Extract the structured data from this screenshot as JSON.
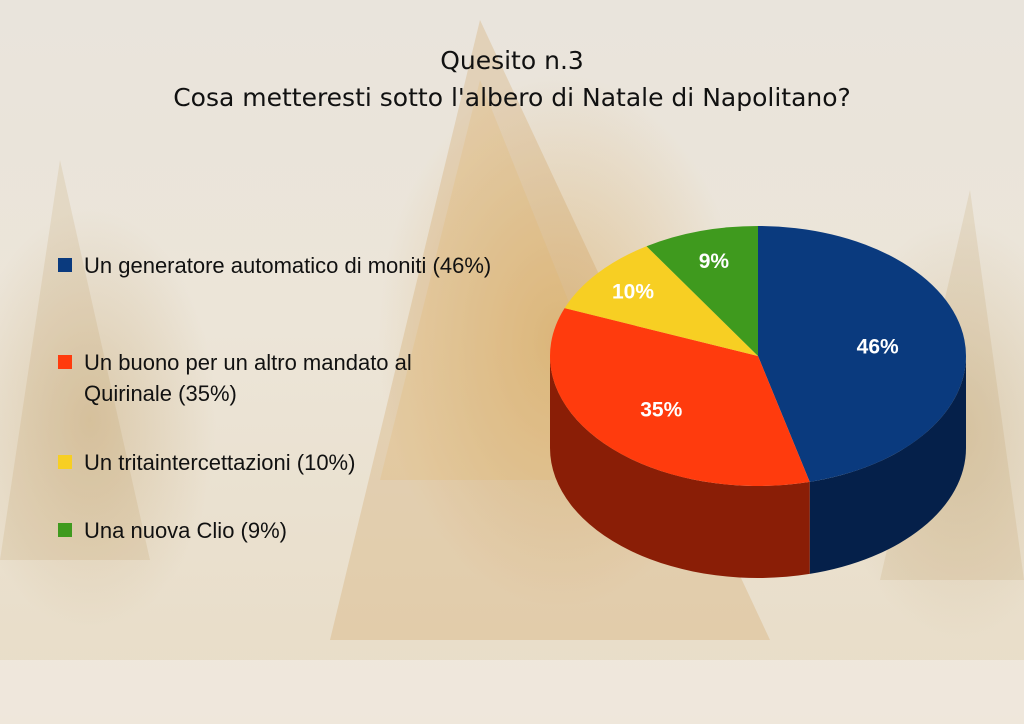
{
  "title_lines": [
    "Quesito n.3",
    "Cosa metteresti sotto l'albero di Natale di Napolitano?"
  ],
  "chart_data": {
    "type": "pie",
    "style": "3d",
    "categories": [
      "Un generatore automatico di moniti (46%)",
      "Un buono per un altro mandato al Quirinale (35%)",
      "Un tritaintercettazioni (10%)",
      "Una nuova Clio (9%)"
    ],
    "values": [
      46,
      35,
      10,
      9
    ],
    "data_labels": [
      "46%",
      "35%",
      "10%",
      "9%"
    ],
    "colors": [
      "#0a3a7e",
      "#ff3b0d",
      "#f7cf23",
      "#3f9a1e"
    ],
    "side_colors": [
      "#05204a",
      "#8a1e06",
      "#8f7710",
      "#22540f"
    ],
    "legend_position": "left",
    "start_clockwise_from": "top"
  }
}
